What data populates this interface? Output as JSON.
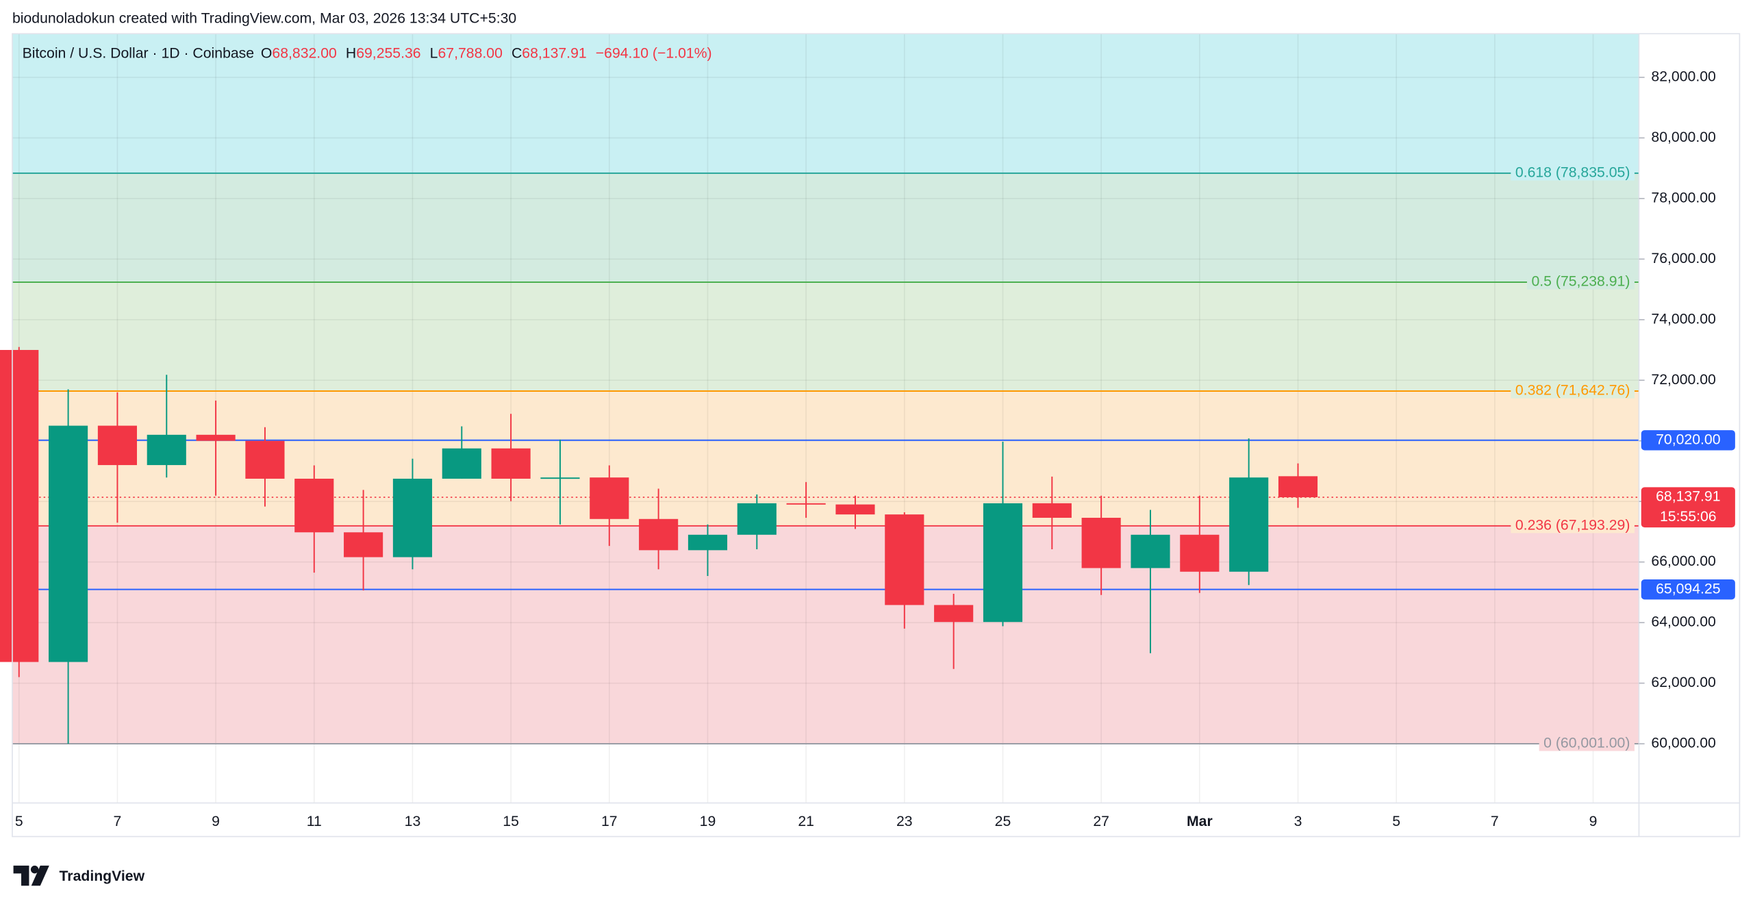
{
  "header": {
    "attribution": "biodunoladokun created with TradingView.com, Mar 03, 2026 13:34 UTC+5:30"
  },
  "legend": {
    "symbol": "Bitcoin / U.S. Dollar · 1D · Coinbase",
    "open_label": "O",
    "open": "68,832.00",
    "high_label": "H",
    "high": "69,255.36",
    "low_label": "L",
    "low": "67,788.00",
    "close_label": "C",
    "close": "68,137.91",
    "change": "−694.10 (−1.01%)"
  },
  "chart_data": {
    "type": "candlestick",
    "categories": [
      "5",
      null,
      "7",
      null,
      "9",
      null,
      "11",
      null,
      "13",
      null,
      "15",
      null,
      "17",
      null,
      "19",
      null,
      "21",
      null,
      "23",
      null,
      "25",
      null,
      "27",
      null,
      "Mar",
      null,
      "3",
      null,
      "5",
      null,
      "7",
      null,
      "9"
    ],
    "open": [
      73000,
      62700,
      70500,
      69200,
      70200,
      70000,
      68750,
      66980,
      66160,
      68750,
      69750,
      68750,
      68790,
      67420,
      66390,
      66900,
      67940,
      67900,
      67570,
      64580,
      64020,
      67940,
      67460,
      65800,
      66900,
      65680,
      68832,
      null,
      null,
      null,
      null,
      null,
      null
    ],
    "high": [
      73100,
      71700,
      71600,
      72180,
      71330,
      70450,
      69190,
      68380,
      69410,
      70480,
      70890,
      70040,
      69190,
      68420,
      67240,
      68230,
      68640,
      68190,
      67640,
      64950,
      69970,
      68820,
      68190,
      67720,
      68190,
      70080,
      69255.36,
      null,
      null,
      null,
      null,
      null,
      null
    ],
    "low": [
      62200,
      60000,
      67300,
      68790,
      68190,
      67830,
      65650,
      65060,
      65760,
      68750,
      68010,
      67240,
      66530,
      65760,
      65540,
      66420,
      67460,
      67090,
      63800,
      62470,
      63880,
      66420,
      64910,
      62990,
      64980,
      65240,
      67788,
      null,
      null,
      null,
      null,
      null,
      null
    ],
    "close": [
      62700,
      70500,
      69200,
      70200,
      70000,
      68750,
      66980,
      66160,
      68750,
      69750,
      68750,
      68790,
      67420,
      66390,
      66900,
      67940,
      67900,
      67570,
      64580,
      64020,
      67940,
      67460,
      65800,
      66900,
      65680,
      68790,
      68137.91,
      null,
      null,
      null,
      null,
      null,
      null
    ],
    "up_color": "#089981",
    "down_color": "#f23645",
    "ylim": [
      58044,
      83440
    ],
    "yticks": [
      {
        "value": 60000,
        "label": "60,000.00"
      },
      {
        "value": 62000,
        "label": "62,000.00"
      },
      {
        "value": 64000,
        "label": "64,000.00"
      },
      {
        "value": 66000,
        "label": "66,000.00"
      },
      {
        "value": 68000,
        "label": "68,000.00"
      },
      {
        "value": 70000,
        "label": "70,000.00"
      },
      {
        "value": 72000,
        "label": "72,000.00"
      },
      {
        "value": 74000,
        "label": "74,000.00"
      },
      {
        "value": 76000,
        "label": "76,000.00"
      },
      {
        "value": 78000,
        "label": "78,000.00"
      },
      {
        "value": 80000,
        "label": "80,000.00"
      },
      {
        "value": 82000,
        "label": "82,000.00"
      }
    ],
    "grid": true,
    "fib_levels": [
      {
        "label": "0 (60,001.00)",
        "value": 60001,
        "color": "#9598a1",
        "fill": "#f9d7da"
      },
      {
        "label": "0.236 (67,193.29)",
        "value": 67193.29,
        "color": "#f23645",
        "fill": "#fde9cf"
      },
      {
        "label": "0.382 (71,642.76)",
        "value": 71642.76,
        "color": "#ff9800",
        "fill": "#dfeedb"
      },
      {
        "label": "0.5 (75,238.91)",
        "value": 75238.91,
        "color": "#4caf50",
        "fill": "#d3ebe0"
      },
      {
        "label": "0.618 (78,835.05)",
        "value": 78835.05,
        "color": "#26a69a",
        "fill": "#c9f0f3"
      }
    ],
    "price_lines": [
      {
        "value": 70020,
        "label": "70,020.00",
        "color": "#2962ff"
      },
      {
        "value": 65094.25,
        "label": "65,094.25",
        "color": "#2962ff"
      }
    ],
    "last_price": {
      "value": 68137.91,
      "label": "68,137.91",
      "countdown": "15:55:06",
      "color": "#f23645"
    }
  },
  "footer": {
    "brand": "TradingView"
  }
}
